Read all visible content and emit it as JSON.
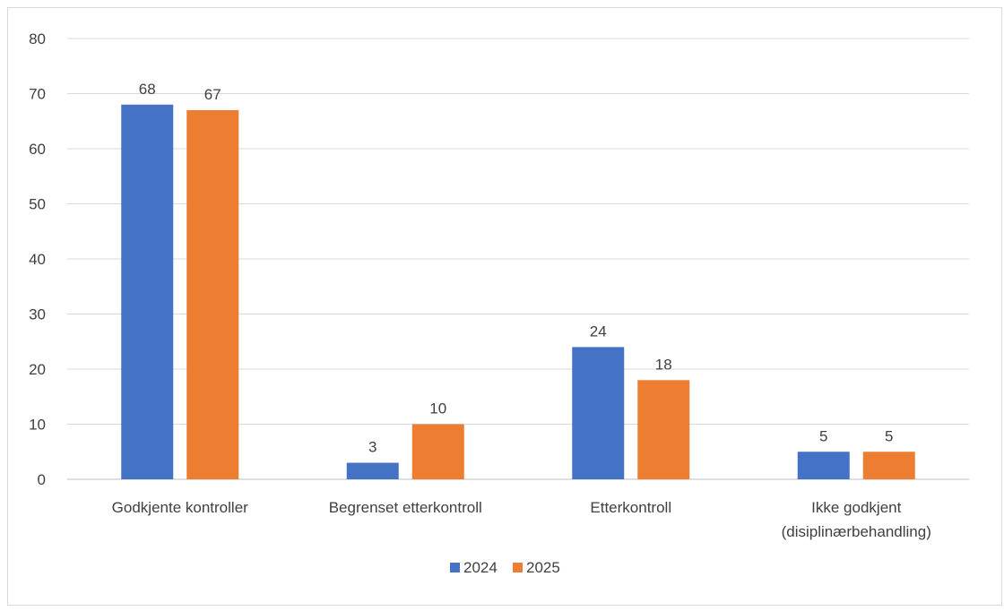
{
  "chart_data": {
    "type": "bar",
    "title": "",
    "xlabel": "",
    "ylabel": "",
    "categories": [
      [
        "Godkjente kontroller"
      ],
      [
        "Begrenset etterkontroll"
      ],
      [
        "Etterkontroll"
      ],
      [
        "Ikke godkjent",
        "(disiplinærbehandling)"
      ]
    ],
    "series": [
      {
        "name": "2024",
        "color": "#4472C4",
        "values": [
          68,
          3,
          24,
          5
        ]
      },
      {
        "name": "2025",
        "color": "#ED7D31",
        "values": [
          67,
          10,
          18,
          5
        ]
      }
    ],
    "ylim": [
      0,
      80
    ],
    "yticks": [
      0,
      10,
      20,
      30,
      40,
      50,
      60,
      70,
      80
    ],
    "grid": true,
    "legend_position": "bottom",
    "data_labels": true
  }
}
